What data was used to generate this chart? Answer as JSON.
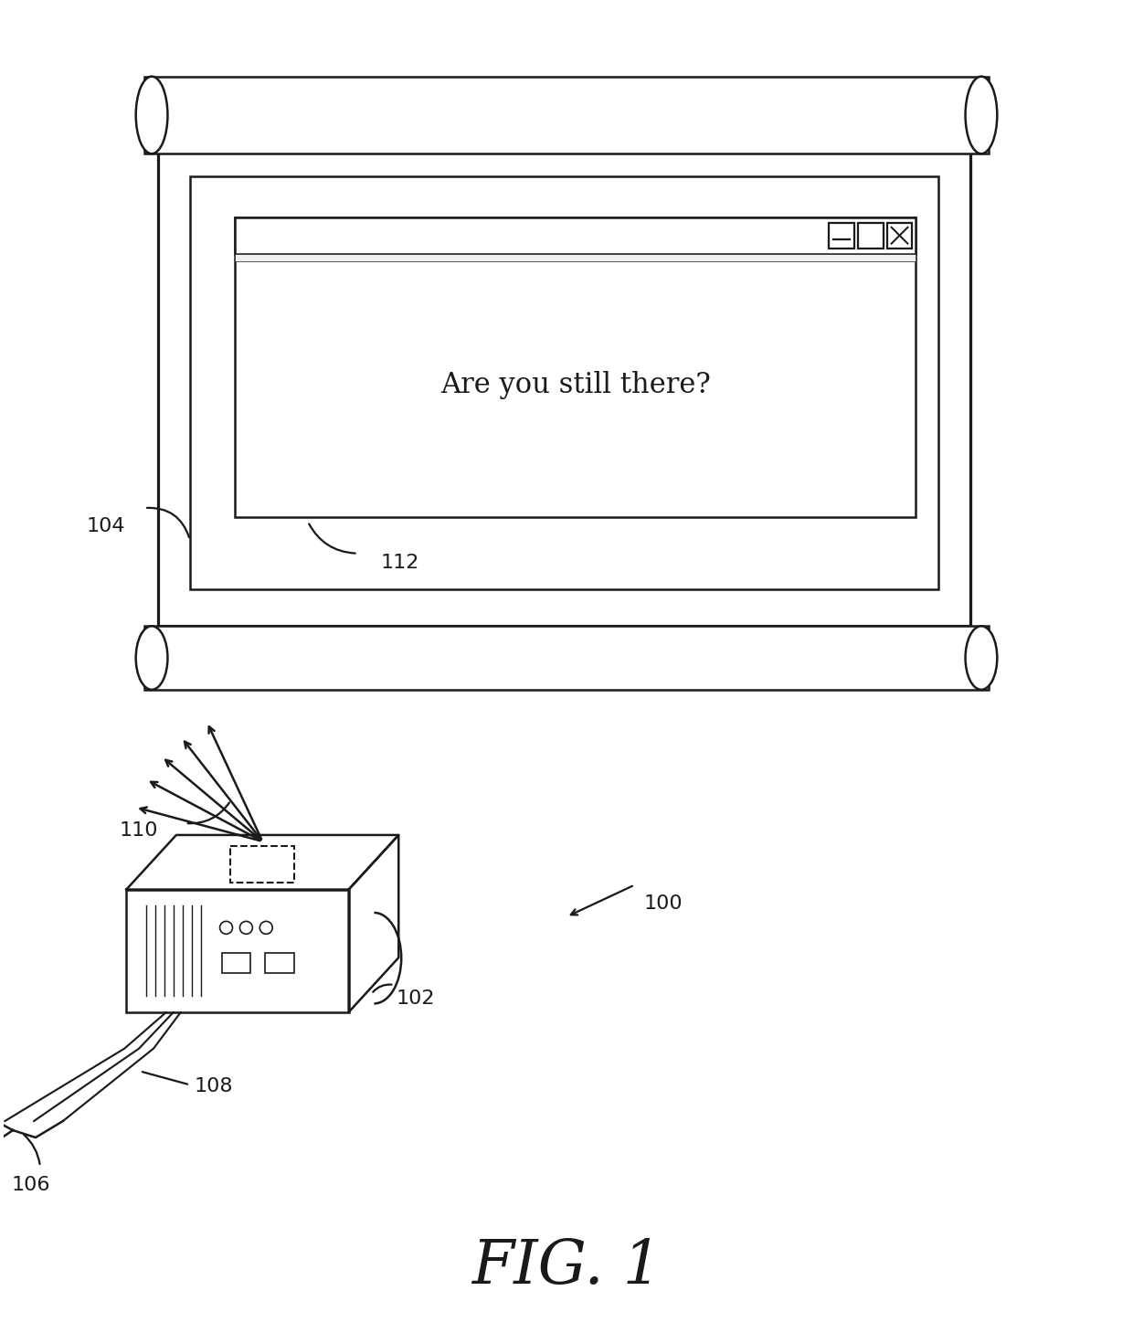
{
  "bg_color": "#ffffff",
  "line_color": "#1a1a1a",
  "fig_label": "FIG. 1",
  "dialog_text": "Are you still there?",
  "lw": 1.8
}
